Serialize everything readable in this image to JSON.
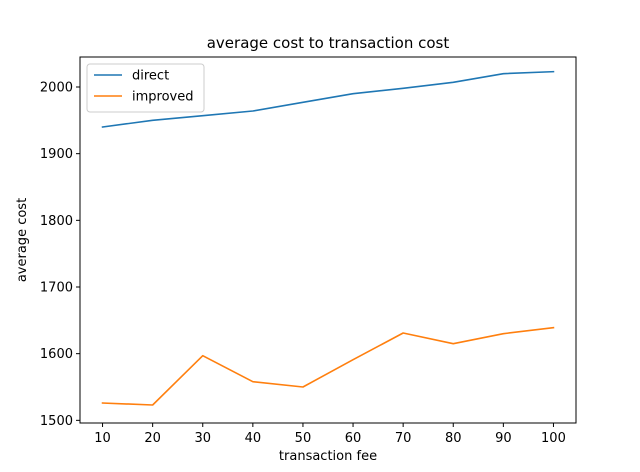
{
  "chart_data": {
    "type": "line",
    "title": "average cost to transaction cost",
    "xlabel": "transaction fee",
    "ylabel": "average cost",
    "x": [
      10,
      20,
      30,
      40,
      50,
      60,
      70,
      80,
      90,
      100
    ],
    "xticks": [
      "10",
      "20",
      "30",
      "40",
      "50",
      "60",
      "70",
      "80",
      "90",
      "100"
    ],
    "yticks": [
      "1500",
      "1600",
      "1700",
      "1800",
      "1900",
      "2000"
    ],
    "xlim": [
      5.5,
      104.5
    ],
    "ylim": [
      1496,
      2045
    ],
    "legend_position": "top-left",
    "grid": false,
    "series": [
      {
        "name": "direct",
        "color": "#1f77b4",
        "values": [
          1940,
          1950,
          1957,
          1964,
          1977,
          1990,
          1998,
          2007,
          2020,
          2023
        ]
      },
      {
        "name": "improved",
        "color": "#ff7f0e",
        "values": [
          1526,
          1523,
          1597,
          1558,
          1550,
          1591,
          1631,
          1615,
          1630,
          1639
        ]
      }
    ]
  }
}
